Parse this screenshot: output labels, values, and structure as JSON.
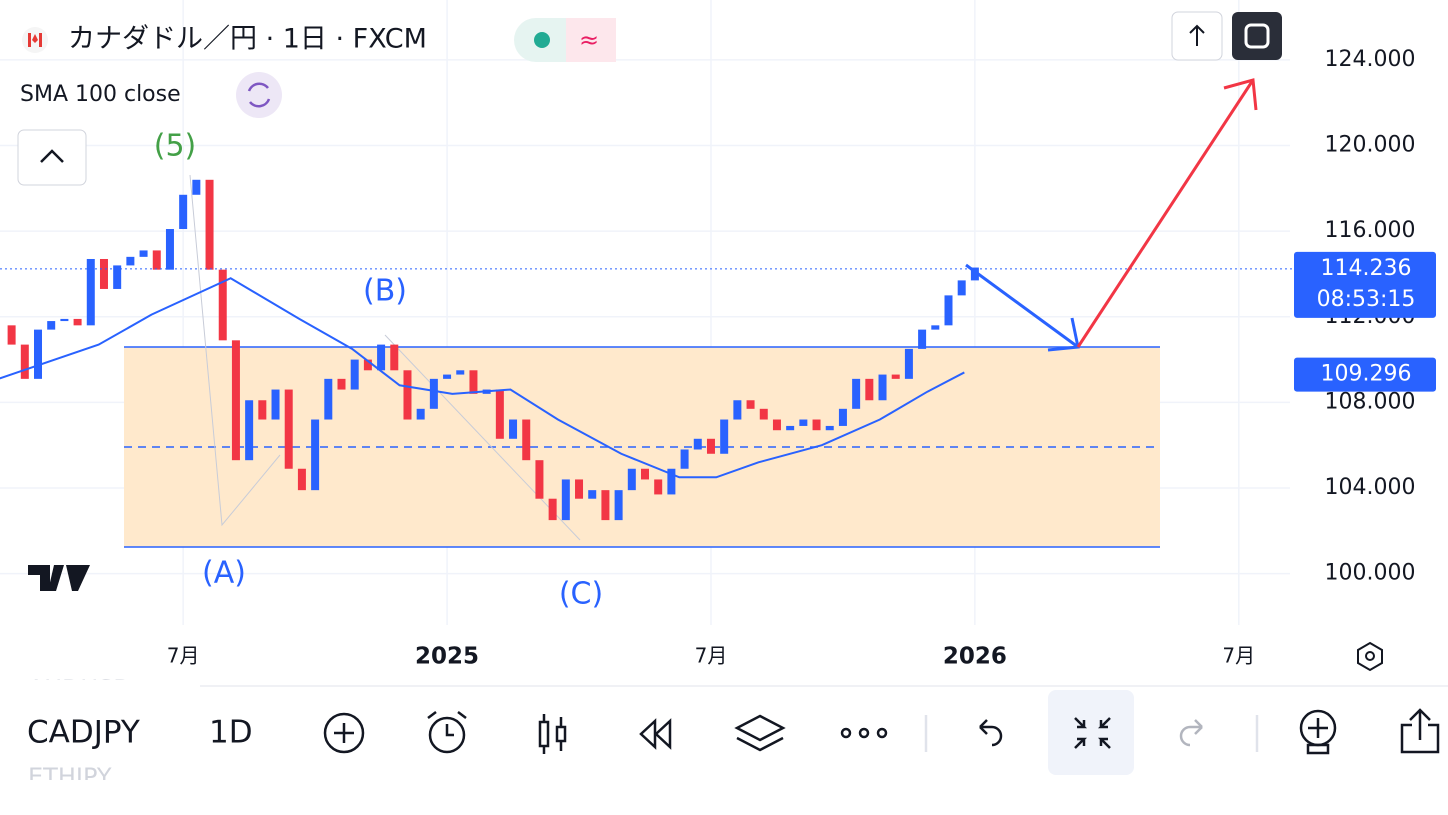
{
  "header": {
    "symbol_title": "カナダドル／円 · 1日 · FXCM",
    "indicator": "SMA 100 close"
  },
  "chart_data": {
    "type": "candlestick",
    "x": [
      2024.15,
      2024.175,
      2024.2,
      2024.225,
      2024.25,
      2024.275,
      2024.3,
      2024.325,
      2024.35,
      2024.375,
      2024.4,
      2024.425,
      2024.45,
      2024.475,
      2024.5,
      2024.525,
      2024.55,
      2024.575,
      2024.6,
      2024.625,
      2024.65,
      2024.675,
      2024.7,
      2024.725,
      2024.75,
      2024.775,
      2024.8,
      2024.825,
      2024.85,
      2024.875,
      2024.9,
      2024.925,
      2024.95,
      2024.975,
      2025,
      2025.025,
      2025.05,
      2025.075,
      2025.1,
      2025.125,
      2025.15,
      2025.175,
      2025.2,
      2025.225,
      2025.25,
      2025.275,
      2025.3,
      2025.325,
      2025.35,
      2025.375,
      2025.4,
      2025.425,
      2025.45,
      2025.475,
      2025.5,
      2025.525,
      2025.55,
      2025.575,
      2025.6,
      2025.625,
      2025.65,
      2025.675,
      2025.7,
      2025.725,
      2025.75,
      2025.775,
      2025.8,
      2025.825,
      2025.85,
      2025.875,
      2025.9,
      2025.925,
      2025.95,
      2025.975,
      2026
    ],
    "values": [
      111.6,
      110.7,
      109.1,
      111.4,
      111.8,
      111.9,
      111.6,
      114.7,
      113.3,
      114.4,
      114.8,
      115.1,
      114.2,
      116.1,
      117.7,
      118.4,
      114.2,
      110.9,
      105.3,
      108.1,
      107.2,
      108.6,
      104.9,
      103.9,
      107.2,
      109.1,
      108.6,
      110.0,
      109.5,
      110.7,
      109.5,
      107.2,
      107.7,
      109.1,
      109.3,
      109.5,
      108.4,
      108.6,
      106.3,
      107.2,
      105.3,
      103.5,
      102.5,
      104.4,
      103.5,
      103.9,
      102.5,
      103.9,
      104.9,
      104.4,
      103.7,
      104.9,
      105.8,
      106.3,
      105.6,
      107.2,
      108.1,
      107.7,
      107.2,
      106.7,
      106.9,
      107.2,
      106.7,
      106.9,
      107.7,
      109.1,
      108.1,
      109.3,
      109.1,
      110.5,
      111.4,
      111.6,
      113.0,
      113.7,
      114.3
    ],
    "up_color": "#2962ff",
    "down_color": "#f23645",
    "overlay": {
      "x": [
        2024.15,
        2024.34,
        2024.44,
        2024.59,
        2024.72,
        2024.82,
        2024.91,
        2025.01,
        2025.12,
        2025.21,
        2025.33,
        2025.44,
        2025.51,
        2025.59,
        2025.71,
        2025.82,
        2025.91,
        2025.98
      ],
      "values": [
        109.1,
        110.7,
        112.1,
        113.8,
        111.9,
        110.5,
        108.8,
        108.4,
        108.6,
        107.2,
        105.6,
        104.5,
        104.5,
        105.2,
        106.0,
        107.2,
        108.5,
        109.4
      ],
      "color": "#2962ff"
    },
    "xlim": [
      2024.153,
      2026.597
    ],
    "ylim": [
      97.6,
      126.8
    ],
    "xticks": [
      {
        "value": 2024.5,
        "label": "7月"
      },
      2025,
      {
        "value": 2025.5,
        "label": "7月"
      },
      2026,
      {
        "value": 2026.5,
        "label": "7月"
      }
    ],
    "yticks": [
      {
        "value": 100,
        "label": "100.000"
      },
      {
        "value": 104,
        "label": "104.000"
      },
      {
        "value": 108,
        "label": "108.000"
      },
      {
        "value": 112,
        "label": "112.000"
      },
      {
        "value": 116,
        "label": "116.000"
      },
      {
        "value": 120,
        "label": "120.000"
      },
      {
        "value": 124,
        "label": "124.000"
      }
    ],
    "grid": true,
    "last_price": 114.236,
    "countdown": "08:53:15",
    "sma_last": 109.296,
    "annotations": [
      "(5)",
      "(A)",
      "(B)",
      "(C)"
    ]
  },
  "toolbar": {
    "symbol": "CADJPY",
    "interval": "1D",
    "prev_symbol": "AUDUSD",
    "next_symbol": "ETHJPY"
  }
}
